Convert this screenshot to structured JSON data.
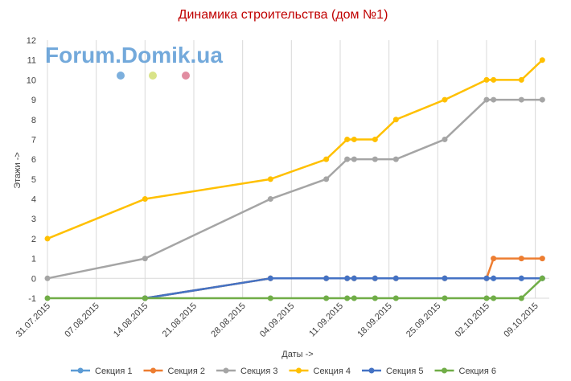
{
  "chart_data": {
    "type": "line",
    "title": "Динамика строительства (дом №1)",
    "xlabel": "Даты ->",
    "ylabel": "Этажи ->",
    "ylim": [
      -1,
      12
    ],
    "y_ticks": [
      -1,
      0,
      1,
      2,
      3,
      4,
      5,
      6,
      7,
      8,
      9,
      10,
      11,
      12
    ],
    "x_range": [
      "2015-07-31",
      "2015-10-11"
    ],
    "x_tick_labels": [
      "31.07.2015",
      "07.08.2015",
      "14.08.2015",
      "21.08.2015",
      "28.08.2015",
      "04.09.2015",
      "11.09.2015",
      "18.09.2015",
      "25.09.2015",
      "02.10.2015",
      "09.10.2015"
    ],
    "grid": "vertical",
    "legend_position": "bottom",
    "watermark": "Forum.Domik.ua",
    "x": [
      "2015-07-31",
      "2015-08-14",
      "2015-09-01",
      "2015-09-09",
      "2015-09-12",
      "2015-09-13",
      "2015-09-16",
      "2015-09-19",
      "2015-09-26",
      "2015-10-02",
      "2015-10-03",
      "2015-10-07",
      "2015-10-10"
    ],
    "series": [
      {
        "name": "Секция 1",
        "color": "#5b9bd5",
        "values": [
          null,
          -1,
          0,
          0,
          0,
          0,
          0,
          0,
          0,
          0,
          0,
          0,
          0
        ]
      },
      {
        "name": "Секция 2",
        "color": "#ed7d31",
        "values": [
          null,
          -1,
          0,
          0,
          0,
          0,
          0,
          0,
          0,
          0,
          1,
          1,
          1
        ]
      },
      {
        "name": "Секция 3",
        "color": "#a5a5a5",
        "values": [
          0,
          1,
          4,
          5,
          6,
          6,
          6,
          6,
          7,
          9,
          9,
          9,
          9
        ]
      },
      {
        "name": "Секция 4",
        "color": "#ffc000",
        "values": [
          2,
          4,
          5,
          6,
          7,
          7,
          7,
          8,
          9,
          10,
          10,
          10,
          11
        ]
      },
      {
        "name": "Секция 5",
        "color": "#4472c4",
        "values": [
          null,
          -1,
          0,
          0,
          0,
          0,
          0,
          0,
          0,
          0,
          0,
          0,
          0
        ]
      },
      {
        "name": "Секция 6",
        "color": "#70ad47",
        "values": [
          -1,
          -1,
          -1,
          -1,
          -1,
          -1,
          -1,
          -1,
          -1,
          -1,
          -1,
          -1,
          0
        ]
      }
    ]
  }
}
